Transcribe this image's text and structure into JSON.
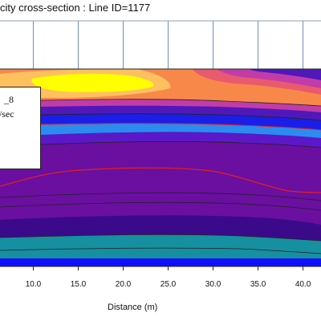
{
  "chart_data": {
    "type": "heatmap",
    "title": "city cross-section : Line ID=1177",
    "xlabel": "Distance (m)",
    "ylabel": "",
    "x_ticks": [
      10.0,
      15.0,
      20.0,
      25.0,
      30.0,
      35.0,
      40.0
    ],
    "x_tick_labels": [
      "10.0",
      "15.0",
      "20.0",
      "25.0",
      "30.0",
      "35.0",
      "40.0"
    ],
    "xlim": [
      6.3,
      42.0
    ],
    "grid": true,
    "legend": {
      "position": "top-left",
      "line1": "_8",
      "line2": "/sec"
    },
    "colors": {
      "yellow": "#ffff00",
      "light_orange": "#ffc060",
      "orange": "#f8884a",
      "salmon": "#e85a6e",
      "magenta": "#c23ca8",
      "dark_violet": "#5018b8",
      "blue": "#1a1ee8",
      "light_blue": "#2a8cf0",
      "purple": "#6a0fa0",
      "dark_purple": "#5a0a88",
      "teal": "#168fa0",
      "bright_blue": "#1010ff",
      "contour_red": "#e02020"
    }
  }
}
